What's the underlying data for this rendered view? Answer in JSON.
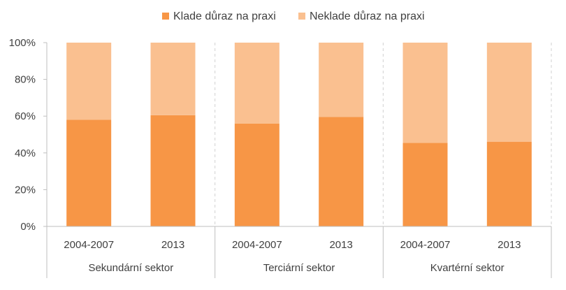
{
  "chart_data": {
    "type": "bar",
    "stacked": true,
    "percent": true,
    "categories": [
      "2004-2007",
      "2013",
      "2004-2007",
      "2013",
      "2004-2007",
      "2013"
    ],
    "groups": [
      "Sekundární sektor",
      "Terciární sektor",
      "Kvartérní sektor"
    ],
    "series": [
      {
        "name": "Klade důraz na praxi",
        "values": [
          58,
          60.5,
          56,
          59.5,
          45.5,
          46
        ],
        "color": "#F79646"
      },
      {
        "name": "Neklade důraz na praxi",
        "values": [
          42,
          39.5,
          44,
          40.5,
          54.5,
          54
        ],
        "color": "#FAC090"
      }
    ],
    "ylim": [
      0,
      100
    ],
    "yticks": [
      "0%",
      "20%",
      "40%",
      "60%",
      "80%",
      "100%"
    ],
    "legend_position": "top",
    "grid": false
  }
}
